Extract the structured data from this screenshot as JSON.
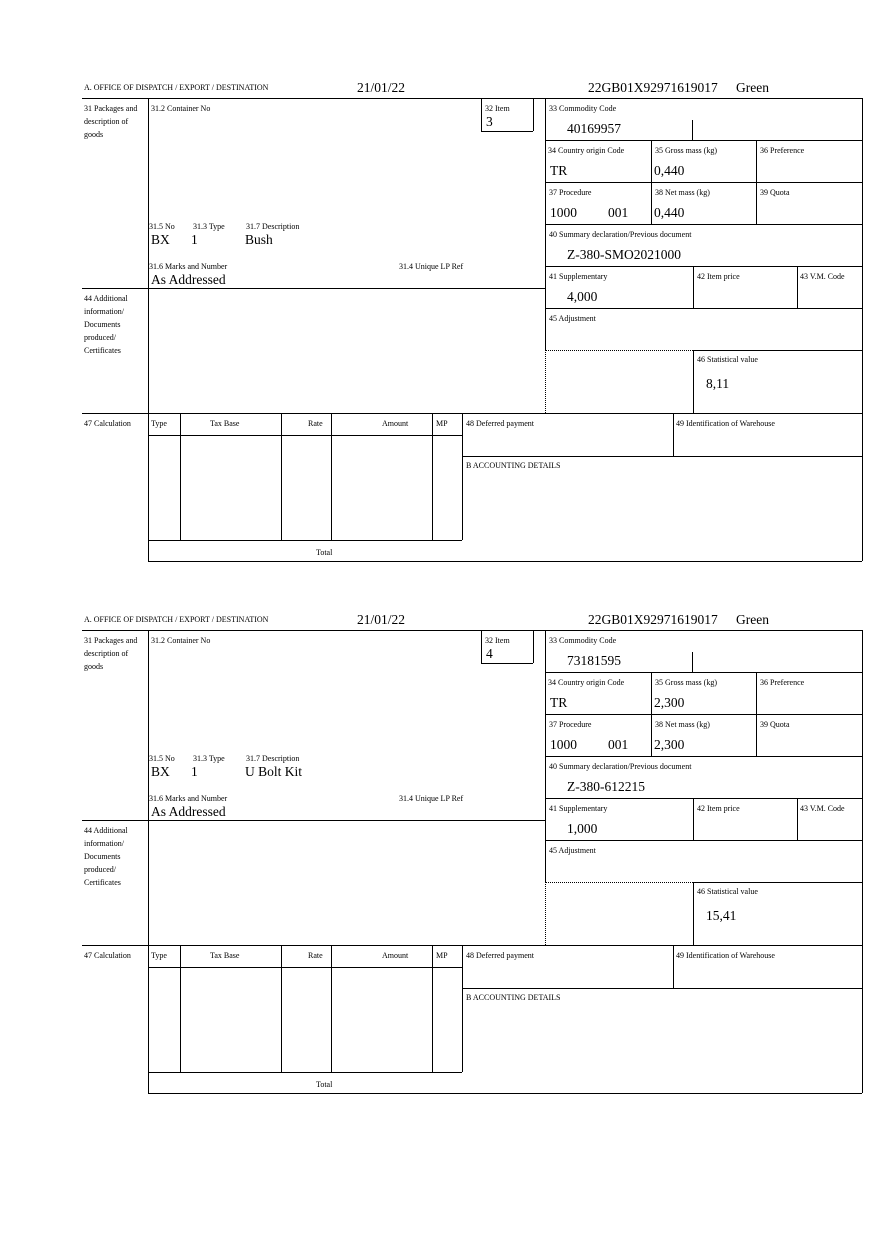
{
  "labels": {
    "office": "A. OFFICE OF DISPATCH / EXPORT / DESTINATION",
    "packages": "31 Packages and description of goods",
    "container": "31.2 Container No",
    "item": "32 Item",
    "no": "31.5 No",
    "type": "31.3 Type",
    "description": "31.7 Description",
    "marks": "31.6 Marks and Number",
    "unique_ref": "31.4 Unique LP Ref",
    "commodity": "33 Commodity Code",
    "country": "34 Country origin Code",
    "gross": "35 Gross mass (kg)",
    "preference": "36 Preference",
    "procedure": "37 Procedure",
    "net": "38 Net mass (kg)",
    "quota": "39 Quota",
    "summary": "40 Summary declaration/Previous document",
    "supplementary": "41 Supplementary",
    "item_price": "42 Item price",
    "vm_code": "43 V.M. Code",
    "additional": "44 Additional information/ Documents produced/ Certificates",
    "adjustment": "45 Adjustment",
    "statistical": "46 Statistical value",
    "calculation": "47 Calculation",
    "calc_type": "Type",
    "calc_tax_base": "Tax Base",
    "calc_rate": "Rate",
    "calc_amount": "Amount",
    "calc_mp": "MP",
    "total": "Total",
    "deferred": "48 Deferred payment",
    "warehouse": "49 Identification of Warehouse",
    "accounting": "B ACCOUNTING DETAILS"
  },
  "forms": [
    {
      "date": "21/01/22",
      "reference": "22GB01X92971619017",
      "route": "Green",
      "item": "3",
      "no": "BX",
      "type": "1",
      "description": "Bush",
      "marks": "As Addressed",
      "commodity": "40169957",
      "country": "TR",
      "gross": "0,440",
      "procedure": "1000",
      "procedure_extra": "001",
      "net": "0,440",
      "summary": "Z-380-SMO2021000",
      "supplementary": "4,000",
      "statistical": "8,11"
    },
    {
      "date": "21/01/22",
      "reference": "22GB01X92971619017",
      "route": "Green",
      "item": "4",
      "no": "BX",
      "type": "1",
      "description": "U Bolt Kit",
      "marks": "As Addressed",
      "commodity": "73181595",
      "country": "TR",
      "gross": "2,300",
      "procedure": "1000",
      "procedure_extra": "001",
      "net": "2,300",
      "summary": "Z-380-612215",
      "supplementary": "1,000",
      "statistical": "15,41"
    }
  ]
}
